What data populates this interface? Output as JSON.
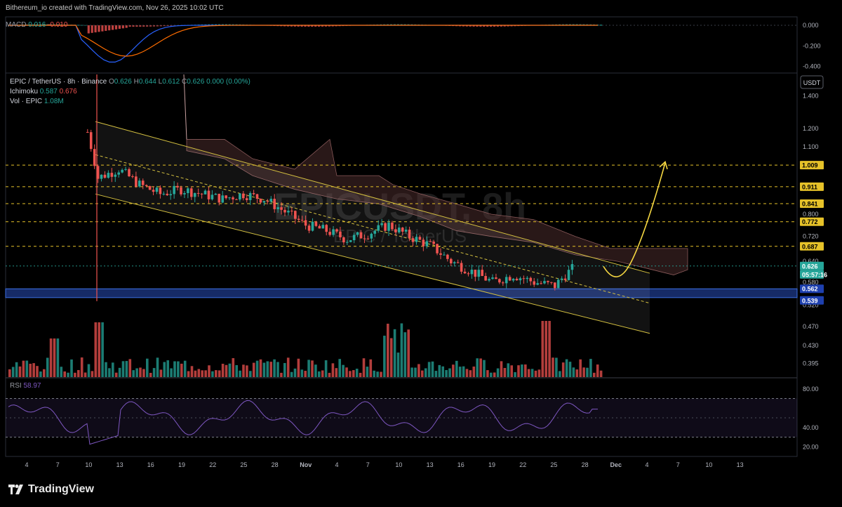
{
  "header": {
    "credit": "Bithereum_io created with TradingView.com, Nov 26, 2025 10:02 UTC"
  },
  "macd": {
    "label": "MACD",
    "values": [
      "0.016",
      "-0.010"
    ],
    "ticks": [
      "0.000",
      "-0.200",
      "-0.400"
    ]
  },
  "legend": {
    "symbol": "EPIC / TetherUS · 8h · Binance",
    "o_label": "O",
    "o": "0.626",
    "h_label": "H",
    "h": "0.644",
    "l_label": "L",
    "l": "0.612",
    "c_label": "C",
    "c": "0.626",
    "change": "0.000 (0.00%)",
    "ichimoku_label": "Ichimoku",
    "ichimoku_a": "0.587",
    "ichimoku_b": "0.676",
    "vol_label": "Vol · EPIC",
    "vol": "1.08M"
  },
  "watermark": {
    "ticker": "EPICUSDT, 8h",
    "name": "EPIC / TetherUS"
  },
  "price_axis": {
    "currency": "USDT",
    "ticks": [
      "1.400",
      "1.200",
      "1.100",
      "0.800",
      "0.720",
      "0.640",
      "0.580",
      "0.520",
      "0.470",
      "0.430",
      "0.395"
    ],
    "tags": [
      {
        "value": "1.009",
        "kind": "level"
      },
      {
        "value": "0.911",
        "kind": "level"
      },
      {
        "value": "0.841",
        "kind": "level"
      },
      {
        "value": "0.772",
        "kind": "level"
      },
      {
        "value": "0.687",
        "kind": "level"
      },
      {
        "value": "0.626",
        "kind": "last"
      },
      {
        "value": "05:57:16",
        "kind": "countdown"
      },
      {
        "value": "0.562",
        "kind": "zone"
      },
      {
        "value": "0.539",
        "kind": "zone"
      }
    ]
  },
  "rsi": {
    "label": "RSI",
    "value": "58.97",
    "ticks": [
      "80.00",
      "40.00",
      "20.00"
    ]
  },
  "time_axis": {
    "labels": [
      "4",
      "7",
      "10",
      "13",
      "16",
      "19",
      "22",
      "25",
      "28",
      "Nov",
      "4",
      "7",
      "10",
      "13",
      "16",
      "19",
      "22",
      "25",
      "28",
      "Dec",
      "4",
      "7",
      "10",
      "13"
    ]
  },
  "chart_data": {
    "type": "candlestick",
    "symbol": "EPIC / TetherUS",
    "interval": "8h",
    "exchange": "Binance",
    "quote": "USDT",
    "price_scale": "log",
    "ylim": [
      0.37,
      1.55
    ],
    "resistance_levels": [
      1.009,
      0.911,
      0.841,
      0.772,
      0.687
    ],
    "support_zone": [
      0.539,
      0.562
    ],
    "last_price": 0.626,
    "ohlc_close_points": [
      {
        "t": "Oct 10",
        "close": 1.18
      },
      {
        "t": "Oct 11",
        "close": 0.95
      },
      {
        "t": "Oct 13",
        "close": 0.99
      },
      {
        "t": "Oct 15",
        "close": 0.92
      },
      {
        "t": "Oct 17",
        "close": 0.88
      },
      {
        "t": "Oct 19",
        "close": 0.9
      },
      {
        "t": "Oct 21",
        "close": 0.88
      },
      {
        "t": "Oct 23",
        "close": 0.86
      },
      {
        "t": "Oct 25",
        "close": 0.88
      },
      {
        "t": "Oct 27",
        "close": 0.86
      },
      {
        "t": "Oct 29",
        "close": 0.81
      },
      {
        "t": "Oct 31",
        "close": 0.76
      },
      {
        "t": "Nov 2",
        "close": 0.74
      },
      {
        "t": "Nov 4",
        "close": 0.71
      },
      {
        "t": "Nov 6",
        "close": 0.73
      },
      {
        "t": "Nov 8",
        "close": 0.76
      },
      {
        "t": "Nov 10",
        "close": 0.72
      },
      {
        "t": "Nov 12",
        "close": 0.69
      },
      {
        "t": "Nov 14",
        "close": 0.64
      },
      {
        "t": "Nov 16",
        "close": 0.61
      },
      {
        "t": "Nov 18",
        "close": 0.58
      },
      {
        "t": "Nov 20",
        "close": 0.6
      },
      {
        "t": "Nov 22",
        "close": 0.58
      },
      {
        "t": "Nov 24",
        "close": 0.57
      },
      {
        "t": "Nov 25",
        "close": 0.6
      },
      {
        "t": "Nov 26",
        "close": 0.626
      }
    ],
    "rsi_last": 58.97,
    "macd_last": 0.016,
    "annotations": [
      "descending channel",
      "projected breakout arrow toward 1.009"
    ]
  },
  "colors": {
    "up": "#26a69a",
    "down": "#ef5350",
    "channel": "#d4c040",
    "level": "#e6c229",
    "zone": "#1e3a8a",
    "cloud": "#5a3636",
    "rsi": "#7e57c2",
    "arrow": "#f5d742"
  }
}
